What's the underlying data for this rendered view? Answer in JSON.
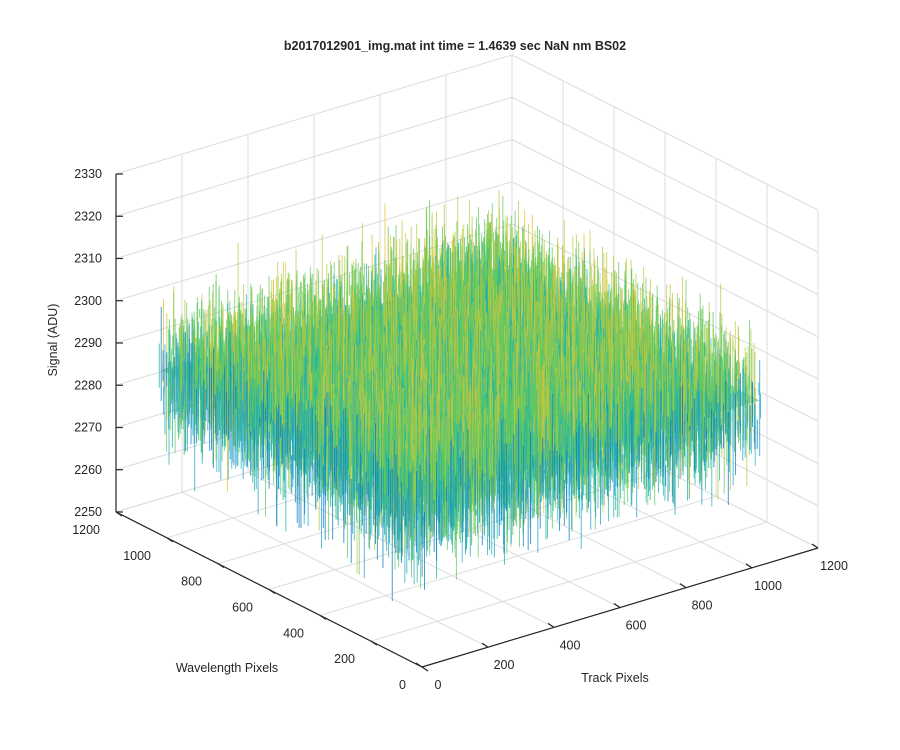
{
  "chart_data": {
    "type": "surface",
    "title": "b2017012901_img.mat int time = 1.4639 sec  NaN nm BS02",
    "xlabel": "Track Pixels",
    "ylabel": "Wavelength Pixels",
    "zlabel": "Signal (ADU)",
    "xlim": [
      0,
      1200
    ],
    "ylim": [
      0,
      1200
    ],
    "zlim": [
      2250,
      2330
    ],
    "x_ticks": [
      0,
      200,
      400,
      600,
      800,
      1000,
      1200
    ],
    "y_ticks": [
      0,
      200,
      400,
      600,
      800,
      1000,
      1200
    ],
    "z_ticks": [
      2250,
      2260,
      2270,
      2280,
      2290,
      2300,
      2310,
      2320,
      2330
    ],
    "x_data_range": [
      1,
      1024
    ],
    "y_data_range": [
      1,
      1024
    ],
    "z_mean": 2289,
    "z_noise_range": [
      2262,
      2326
    ],
    "grid": true,
    "colormap": "parula",
    "colors": [
      "#0072bd",
      "#1f9fd5",
      "#20b2aa",
      "#5ec962",
      "#b9c943",
      "#e3c12e"
    ]
  }
}
